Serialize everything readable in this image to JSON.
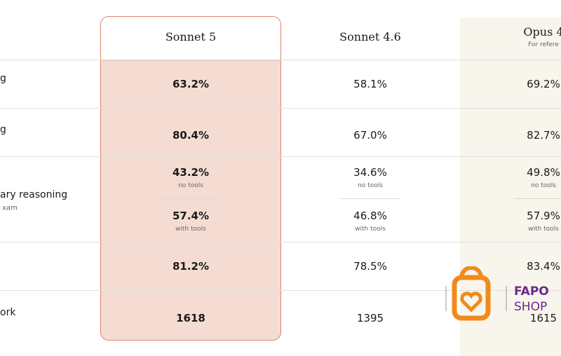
{
  "table": {
    "columns": [
      {
        "name": "Sonnet 5"
      },
      {
        "name": "Sonnet 4.6"
      },
      {
        "name": "Opus 4",
        "note": "For refere"
      }
    ],
    "rows": [
      {
        "label": "g",
        "cells": [
          {
            "value": "63.2%"
          },
          {
            "value": "58.1%"
          },
          {
            "value": "69.2%"
          }
        ]
      },
      {
        "label": "g",
        "cells": [
          {
            "value": "80.4%"
          },
          {
            "value": "67.0%"
          },
          {
            "value": "82.7%"
          }
        ]
      },
      {
        "label": "ary reasoning",
        "sublabel": "xam",
        "cells": [
          [
            {
              "value": "43.2%",
              "note": "no tools"
            },
            {
              "value": "57.4%",
              "note": "with tools"
            }
          ],
          [
            {
              "value": "34.6%",
              "note": "no tools"
            },
            {
              "value": "46.8%",
              "note": "with tools"
            }
          ],
          [
            {
              "value": "49.8%",
              "note": "no tools"
            },
            {
              "value": "57.9%",
              "note": "with tools"
            }
          ]
        ]
      },
      {
        "cells": [
          {
            "value": "81.2%"
          },
          {
            "value": "78.5%"
          },
          {
            "value": "83.4%"
          }
        ]
      },
      {
        "label": "ork",
        "cells": [
          {
            "value": "1618"
          },
          {
            "value": "1395"
          },
          {
            "value": "1615"
          }
        ]
      }
    ]
  },
  "watermark": {
    "line1": "FAPO",
    "line2": "SHOP"
  }
}
